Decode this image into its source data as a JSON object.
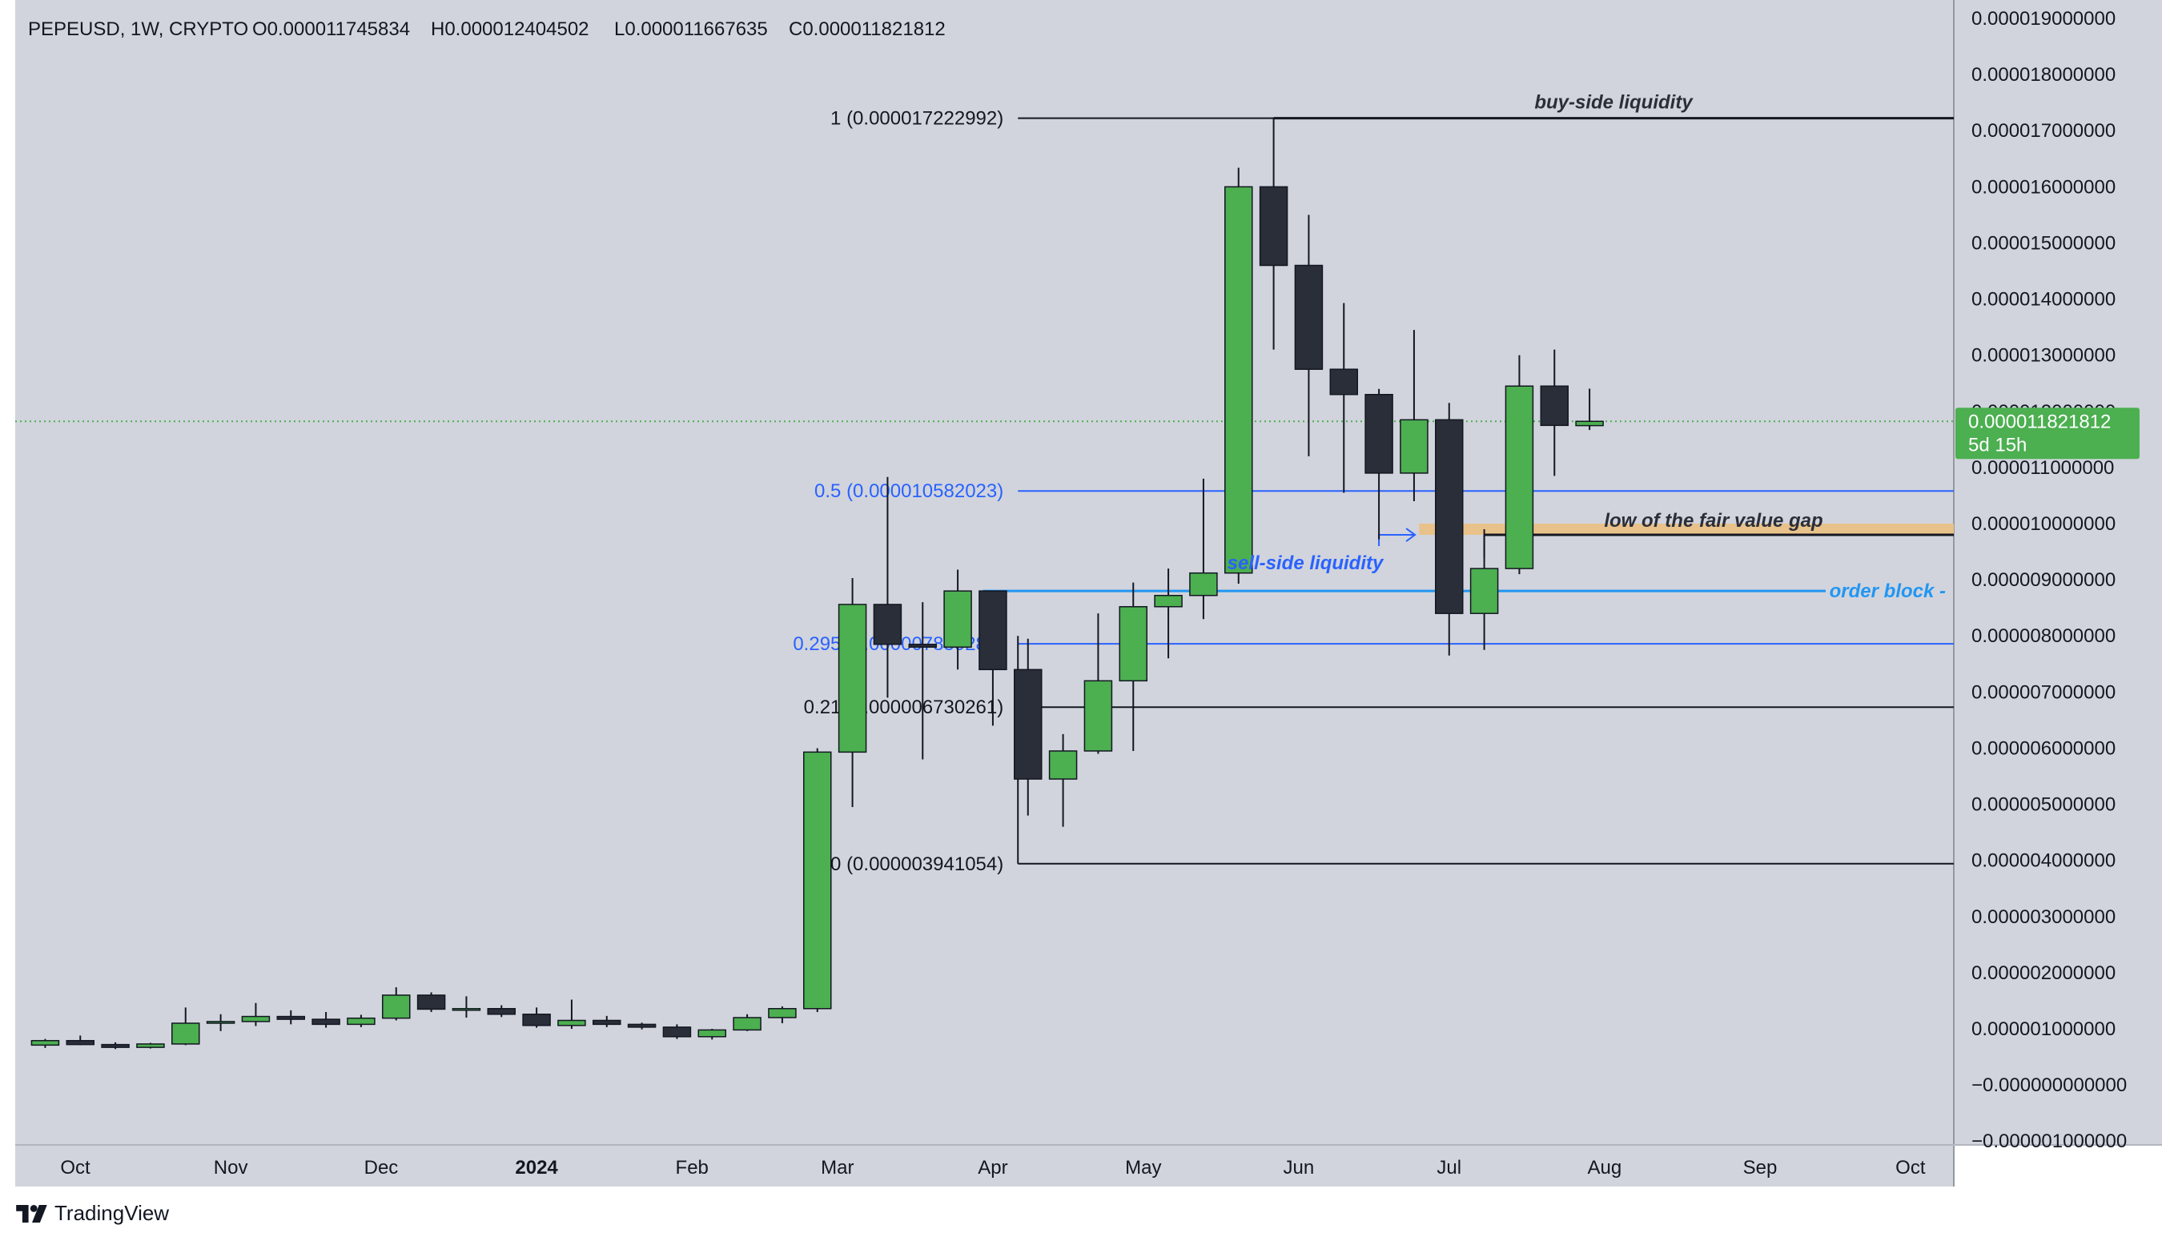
{
  "header": {
    "symbol_text": "PEPEUSD, 1W, CRYPTO",
    "open_text": "O0.000011745834",
    "high_text": "H0.000012404502",
    "low_text": "L0.000011667635",
    "close_text": "C0.000011821812"
  },
  "price_tag": {
    "price": "0.000011821812",
    "countdown": "5d 15h"
  },
  "brand": {
    "name": "TradingView"
  },
  "colors": {
    "background": "#d1d4dc",
    "up": "#4caf50",
    "down": "#2a2e39",
    "price_tag": "#4caf50",
    "fib_blue": "#2962ff",
    "order_block": "#2196f3",
    "fvg": "#e8c28a",
    "line_dark": "#131722"
  },
  "chart_data": {
    "type": "candlestick",
    "symbol": "PEPEUSD",
    "timeframe": "1W",
    "exchange": "CRYPTO",
    "y_axis": {
      "min": -1e-06,
      "max": 1.9e-05,
      "ticks": [
        "0.000019000000",
        "0.000018000000",
        "0.000017000000",
        "0.000016000000",
        "0.000015000000",
        "0.000014000000",
        "0.000013000000",
        "0.000012000000",
        "0.000011000000",
        "0.000010000000",
        "0.000009000000",
        "0.000008000000",
        "0.000007000000",
        "0.000006000000",
        "0.000005000000",
        "0.000004000000",
        "0.000003000000",
        "0.000002000000",
        "0.000001000000",
        "−0.000000000000",
        "−0.000001000000"
      ]
    },
    "x_axis": {
      "labels": [
        {
          "text": "Oct",
          "date": "2023-10-01",
          "bold": false
        },
        {
          "text": "Nov",
          "date": "2023-11-01",
          "bold": false
        },
        {
          "text": "Dec",
          "date": "2023-12-01",
          "bold": false
        },
        {
          "text": "2024",
          "date": "2024-01-01",
          "bold": true
        },
        {
          "text": "Feb",
          "date": "2024-02-01",
          "bold": false
        },
        {
          "text": "Mar",
          "date": "2024-03-01",
          "bold": false
        },
        {
          "text": "Apr",
          "date": "2024-04-01",
          "bold": false
        },
        {
          "text": "May",
          "date": "2024-05-01",
          "bold": false
        },
        {
          "text": "Jun",
          "date": "2024-06-01",
          "bold": false
        },
        {
          "text": "Jul",
          "date": "2024-07-01",
          "bold": false
        },
        {
          "text": "Aug",
          "date": "2024-08-01",
          "bold": false
        },
        {
          "text": "Sep",
          "date": "2024-09-01",
          "bold": false
        },
        {
          "text": "Oct",
          "date": "2024-10-01",
          "bold": false
        }
      ]
    },
    "candles": [
      {
        "date": "2023-09-25",
        "o": 7.1e-07,
        "h": 8.2e-07,
        "l": 6.6e-07,
        "c": 7.9e-07
      },
      {
        "date": "2023-10-02",
        "o": 7.9e-07,
        "h": 8.8e-07,
        "l": 7.1e-07,
        "c": 7.2e-07
      },
      {
        "date": "2023-10-09",
        "o": 7.2e-07,
        "h": 7.6e-07,
        "l": 6.4e-07,
        "c": 6.7e-07
      },
      {
        "date": "2023-10-16",
        "o": 6.7e-07,
        "h": 7.5e-07,
        "l": 6.5e-07,
        "c": 7.3e-07
      },
      {
        "date": "2023-10-23",
        "o": 7.3e-07,
        "h": 1.38e-06,
        "l": 7.1e-07,
        "c": 1.1e-06
      },
      {
        "date": "2023-10-30",
        "o": 1.1e-06,
        "h": 1.26e-06,
        "l": 9.6e-07,
        "c": 1.13e-06
      },
      {
        "date": "2023-11-06",
        "o": 1.13e-06,
        "h": 1.46e-06,
        "l": 1.05e-06,
        "c": 1.22e-06
      },
      {
        "date": "2023-11-13",
        "o": 1.22e-06,
        "h": 1.33e-06,
        "l": 1.08e-06,
        "c": 1.17e-06
      },
      {
        "date": "2023-11-20",
        "o": 1.17e-06,
        "h": 1.3e-06,
        "l": 1.02e-06,
        "c": 1.08e-06
      },
      {
        "date": "2023-11-27",
        "o": 1.08e-06,
        "h": 1.25e-06,
        "l": 1.03e-06,
        "c": 1.19e-06
      },
      {
        "date": "2023-12-04",
        "o": 1.19e-06,
        "h": 1.74e-06,
        "l": 1.15e-06,
        "c": 1.6e-06
      },
      {
        "date": "2023-12-11",
        "o": 1.6e-06,
        "h": 1.65e-06,
        "l": 1.3e-06,
        "c": 1.35e-06
      },
      {
        "date": "2023-12-18",
        "o": 1.35e-06,
        "h": 1.58e-06,
        "l": 1.2e-06,
        "c": 1.36e-06
      },
      {
        "date": "2023-12-25",
        "o": 1.36e-06,
        "h": 1.42e-06,
        "l": 1.21e-06,
        "c": 1.26e-06
      },
      {
        "date": "2024-01-01",
        "o": 1.26e-06,
        "h": 1.38e-06,
        "l": 1.02e-06,
        "c": 1.06e-06
      },
      {
        "date": "2024-01-08",
        "o": 1.06e-06,
        "h": 1.52e-06,
        "l": 1e-06,
        "c": 1.15e-06
      },
      {
        "date": "2024-01-15",
        "o": 1.15e-06,
        "h": 1.23e-06,
        "l": 1.03e-06,
        "c": 1.08e-06
      },
      {
        "date": "2024-01-22",
        "o": 1.08e-06,
        "h": 1.11e-06,
        "l": 9.9e-07,
        "c": 1.03e-06
      },
      {
        "date": "2024-01-29",
        "o": 1.03e-06,
        "h": 1.08e-06,
        "l": 8.2e-07,
        "c": 8.6e-07
      },
      {
        "date": "2024-02-05",
        "o": 8.6e-07,
        "h": 1e-06,
        "l": 8.1e-07,
        "c": 9.8e-07
      },
      {
        "date": "2024-02-12",
        "o": 9.8e-07,
        "h": 1.26e-06,
        "l": 9.6e-07,
        "c": 1.2e-06
      },
      {
        "date": "2024-02-19",
        "o": 1.2e-06,
        "h": 1.4e-06,
        "l": 1.1e-06,
        "c": 1.36e-06
      },
      {
        "date": "2024-02-26",
        "o": 1.36e-06,
        "h": 6e-06,
        "l": 1.3e-06,
        "c": 5.93e-06
      },
      {
        "date": "2024-03-04",
        "o": 5.93e-06,
        "h": 9.03e-06,
        "l": 4.95e-06,
        "c": 8.56e-06
      },
      {
        "date": "2024-03-11",
        "o": 8.56e-06,
        "h": 1.083e-05,
        "l": 6.9e-06,
        "c": 7.85e-06
      },
      {
        "date": "2024-03-18",
        "o": 7.85e-06,
        "h": 8.6e-06,
        "l": 5.8e-06,
        "c": 7.8e-06
      },
      {
        "date": "2024-03-25",
        "o": 7.8e-06,
        "h": 9.18e-06,
        "l": 7.4e-06,
        "c": 8.8e-06
      },
      {
        "date": "2024-04-01",
        "o": 8.8e-06,
        "h": 8.8e-06,
        "l": 6.4e-06,
        "c": 7.4e-06
      },
      {
        "date": "2024-04-08",
        "o": 7.4e-06,
        "h": 7.95e-06,
        "l": 4.8e-06,
        "c": 5.45e-06
      },
      {
        "date": "2024-04-15",
        "o": 5.45e-06,
        "h": 6.25e-06,
        "l": 4.6e-06,
        "c": 5.95e-06
      },
      {
        "date": "2024-04-22",
        "o": 5.95e-06,
        "h": 8.4e-06,
        "l": 5.9e-06,
        "c": 7.2e-06
      },
      {
        "date": "2024-04-29",
        "o": 7.2e-06,
        "h": 8.95e-06,
        "l": 5.95e-06,
        "c": 8.52e-06
      },
      {
        "date": "2024-05-06",
        "o": 8.52e-06,
        "h": 9.2e-06,
        "l": 7.6e-06,
        "c": 8.72e-06
      },
      {
        "date": "2024-05-13",
        "o": 8.72e-06,
        "h": 1.08e-05,
        "l": 8.3e-06,
        "c": 9.12e-06
      },
      {
        "date": "2024-05-20",
        "o": 9.12e-06,
        "h": 1.634e-05,
        "l": 8.93e-06,
        "c": 1.6e-05
      },
      {
        "date": "2024-05-27",
        "o": 1.6e-05,
        "h": 1.722e-05,
        "l": 1.31e-05,
        "c": 1.46e-05
      },
      {
        "date": "2024-06-03",
        "o": 1.46e-05,
        "h": 1.55e-05,
        "l": 1.12e-05,
        "c": 1.275e-05
      },
      {
        "date": "2024-06-10",
        "o": 1.275e-05,
        "h": 1.393e-05,
        "l": 1.055e-05,
        "c": 1.23e-05
      },
      {
        "date": "2024-06-17",
        "o": 1.23e-05,
        "h": 1.24e-05,
        "l": 9.72e-06,
        "c": 1.09e-05
      },
      {
        "date": "2024-06-24",
        "o": 1.09e-05,
        "h": 1.345e-05,
        "l": 1.04e-05,
        "c": 1.185e-05
      },
      {
        "date": "2024-07-01",
        "o": 1.185e-05,
        "h": 1.215e-05,
        "l": 7.65e-06,
        "c": 8.4e-06
      },
      {
        "date": "2024-07-08",
        "o": 8.4e-06,
        "h": 9.9e-06,
        "l": 7.75e-06,
        "c": 9.2e-06
      },
      {
        "date": "2024-07-15",
        "o": 9.2e-06,
        "h": 1.3e-05,
        "l": 9.1e-06,
        "c": 1.245e-05
      },
      {
        "date": "2024-07-22",
        "o": 1.245e-05,
        "h": 1.31e-05,
        "l": 1.085e-05,
        "c": 1.175e-05
      },
      {
        "date": "2024-07-29",
        "o": 1.174583e-05,
        "h": 1.24045e-05,
        "l": 1.166764e-05,
        "c": 1.182181e-05
      }
    ],
    "horizontal_levels": [
      {
        "label": "1 (0.000017222992)",
        "value": 1.7222992e-05,
        "color": "#131722",
        "from": "2024-04-08"
      },
      {
        "label": "0.5 (0.000010582023)",
        "value": 1.0582023e-05,
        "color": "#2962ff",
        "from": "2024-04-08"
      },
      {
        "label": "0.295 (0.000007859289)",
        "value": 7.8593e-06,
        "color": "#2962ff",
        "from": "2024-04-08"
      },
      {
        "label": "0.21 (0.000006730261)",
        "value": 6.730261e-06,
        "color": "#131722",
        "from": "2024-04-08"
      },
      {
        "label": "0 (0.000003941054)",
        "value": 3.941054e-06,
        "color": "#131722",
        "from": "2024-04-08"
      }
    ],
    "annotations": {
      "buy_side": "buy-side liquidity",
      "sell_side": "sell-side liquidity",
      "fvg_low": "low of the fair value gap",
      "order_block": "order block"
    }
  }
}
